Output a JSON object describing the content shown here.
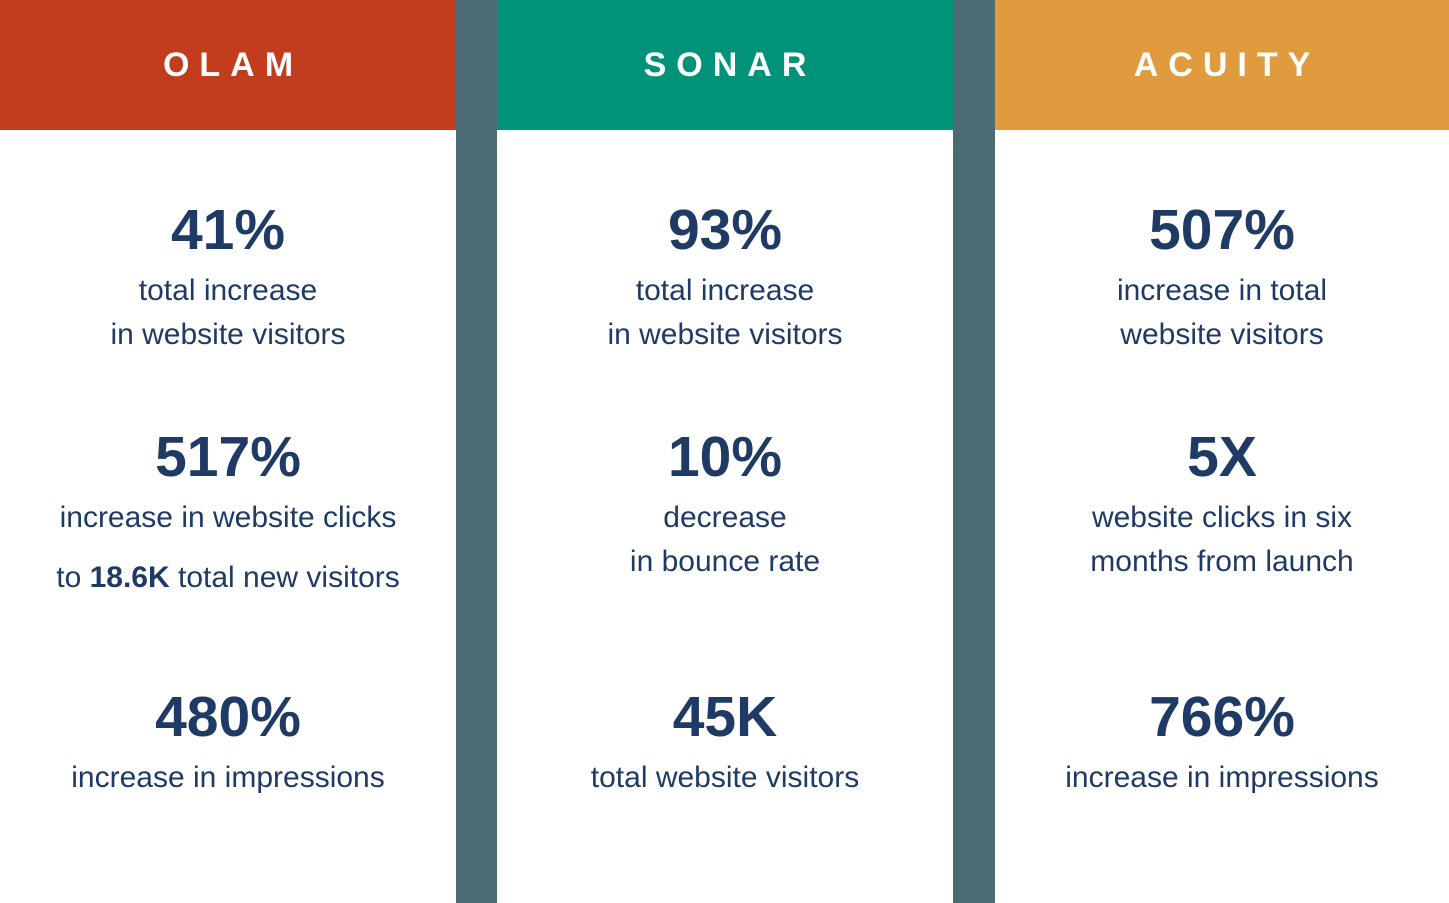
{
  "colors": {
    "olam_header": "#C23D1E",
    "sonar_header": "#009379",
    "acuity_header": "#E09B3E",
    "gutter": "#4D6B74",
    "stat_text": "#1F3A64",
    "header_text": "#FFFFFF",
    "panel_background": "#FFFFFF"
  },
  "columns": [
    {
      "title": "OLAM",
      "header_color": "#C23D1E",
      "stats": [
        {
          "value": "41%",
          "label": "total increase\nin website visitors"
        },
        {
          "value": "517%",
          "label": "increase in website clicks",
          "extra_prefix": "to ",
          "extra_bold": "18.6K",
          "extra_suffix": " total new visitors"
        },
        {
          "value": "480%",
          "label": "increase in impressions"
        }
      ]
    },
    {
      "title": "SONAR",
      "header_color": "#009379",
      "stats": [
        {
          "value": "93%",
          "label": "total increase\nin website visitors"
        },
        {
          "value": "10%",
          "label": "decrease\nin bounce rate"
        },
        {
          "value": "45K",
          "label": "total website visitors"
        }
      ]
    },
    {
      "title": "ACUITY",
      "header_color": "#E09B3E",
      "stats": [
        {
          "value": "507%",
          "label": "increase in total\nwebsite visitors"
        },
        {
          "value": "5X",
          "label": "website clicks in six\nmonths from launch"
        },
        {
          "value": "766%",
          "label": "increase in impressions"
        }
      ]
    }
  ],
  "chart_data": {
    "type": "table",
    "title": "Brand marketing results comparison",
    "categories": [
      "OLAM",
      "SONAR",
      "ACUITY"
    ],
    "series": [
      {
        "name": "OLAM",
        "stats": [
          {
            "value": "41%",
            "description": "total increase in website visitors"
          },
          {
            "value": "517%",
            "description": "increase in website clicks to 18.6K total new visitors"
          },
          {
            "value": "480%",
            "description": "increase in impressions"
          }
        ]
      },
      {
        "name": "SONAR",
        "stats": [
          {
            "value": "93%",
            "description": "total increase in website visitors"
          },
          {
            "value": "10%",
            "description": "decrease in bounce rate"
          },
          {
            "value": "45K",
            "description": "total website visitors"
          }
        ]
      },
      {
        "name": "ACUITY",
        "stats": [
          {
            "value": "507%",
            "description": "increase in total website visitors"
          },
          {
            "value": "5X",
            "description": "website clicks in six months from launch"
          },
          {
            "value": "766%",
            "description": "increase in impressions"
          }
        ]
      }
    ],
    "layout": {
      "columns": 3,
      "stats_per_column": 3,
      "separators": "slate vertical gutters"
    }
  }
}
